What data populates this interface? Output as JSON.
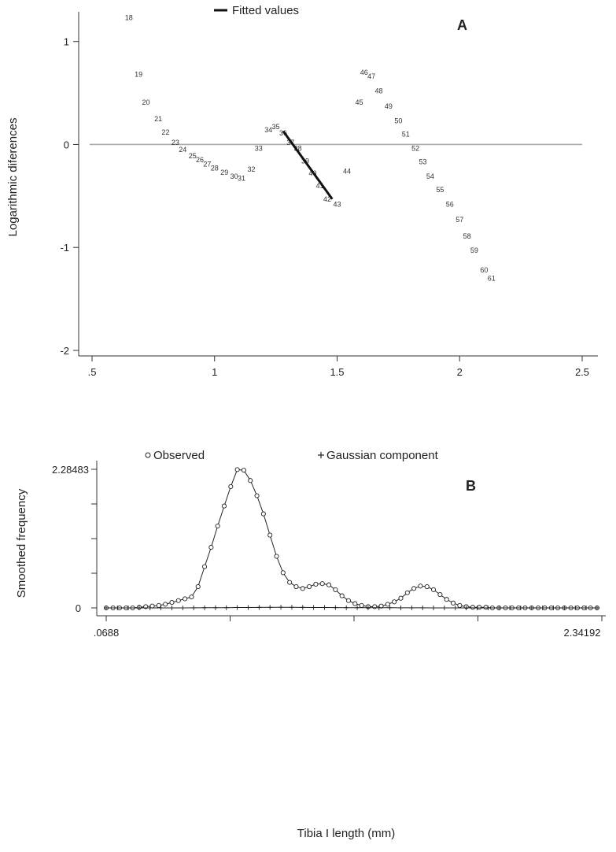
{
  "chart_data": [
    {
      "type": "scatter",
      "panel_label": "A",
      "ylabel": "Logarithmic diferences",
      "xlabel": "",
      "xlim": [
        0.5,
        2.5
      ],
      "ylim": [
        -2,
        1.25
      ],
      "x_ticks": [
        0.5,
        1,
        1.5,
        2,
        2.5
      ],
      "x_tick_labels": [
        ".5",
        "1",
        "1.5",
        "2",
        "2.5"
      ],
      "y_ticks": [
        -2,
        -1,
        0,
        1
      ],
      "y_tick_labels": [
        "-2",
        "-1",
        "0",
        "1"
      ],
      "reference_line_y": 0,
      "legend": {
        "label": "Fitted values",
        "placement": "top-center"
      },
      "fitted_line": [
        {
          "x": 1.28,
          "y": 0.13
        },
        {
          "x": 1.48,
          "y": -0.53
        }
      ],
      "points": [
        {
          "label": "18",
          "x": 0.65,
          "y": 1.23
        },
        {
          "label": "19",
          "x": 0.69,
          "y": 0.68
        },
        {
          "label": "20",
          "x": 0.72,
          "y": 0.41
        },
        {
          "label": "21",
          "x": 0.77,
          "y": 0.25
        },
        {
          "label": "22",
          "x": 0.8,
          "y": 0.12
        },
        {
          "label": "23",
          "x": 0.84,
          "y": 0.02
        },
        {
          "label": "24",
          "x": 0.87,
          "y": -0.05
        },
        {
          "label": "25",
          "x": 0.91,
          "y": -0.11
        },
        {
          "label": "26",
          "x": 0.94,
          "y": -0.15
        },
        {
          "label": "27",
          "x": 0.97,
          "y": -0.19
        },
        {
          "label": "28",
          "x": 1.0,
          "y": -0.23
        },
        {
          "label": "29",
          "x": 1.04,
          "y": -0.27
        },
        {
          "label": "30",
          "x": 1.08,
          "y": -0.31
        },
        {
          "label": "31",
          "x": 1.11,
          "y": -0.33
        },
        {
          "label": "32",
          "x": 1.15,
          "y": -0.24
        },
        {
          "label": "33",
          "x": 1.18,
          "y": -0.04
        },
        {
          "label": "34",
          "x": 1.22,
          "y": 0.14
        },
        {
          "label": "35",
          "x": 1.25,
          "y": 0.17
        },
        {
          "label": "36",
          "x": 1.28,
          "y": 0.11
        },
        {
          "label": "37",
          "x": 1.31,
          "y": 0.02
        },
        {
          "label": "38",
          "x": 1.34,
          "y": -0.04
        },
        {
          "label": "39",
          "x": 1.37,
          "y": -0.16
        },
        {
          "label": "40",
          "x": 1.4,
          "y": -0.28
        },
        {
          "label": "41",
          "x": 1.43,
          "y": -0.4
        },
        {
          "label": "42",
          "x": 1.46,
          "y": -0.53
        },
        {
          "label": "43",
          "x": 1.5,
          "y": -0.58
        },
        {
          "label": "44",
          "x": 1.54,
          "y": -0.26
        },
        {
          "label": "45",
          "x": 1.59,
          "y": 0.41
        },
        {
          "label": "46",
          "x": 1.61,
          "y": 0.7
        },
        {
          "label": "47",
          "x": 1.64,
          "y": 0.66
        },
        {
          "label": "48",
          "x": 1.67,
          "y": 0.52
        },
        {
          "label": "49",
          "x": 1.71,
          "y": 0.37
        },
        {
          "label": "50",
          "x": 1.75,
          "y": 0.23
        },
        {
          "label": "51",
          "x": 1.78,
          "y": 0.1
        },
        {
          "label": "52",
          "x": 1.82,
          "y": -0.04
        },
        {
          "label": "53",
          "x": 1.85,
          "y": -0.17
        },
        {
          "label": "54",
          "x": 1.88,
          "y": -0.31
        },
        {
          "label": "55",
          "x": 1.92,
          "y": -0.44
        },
        {
          "label": "56",
          "x": 1.96,
          "y": -0.58
        },
        {
          "label": "57",
          "x": 2.0,
          "y": -0.73
        },
        {
          "label": "58",
          "x": 2.03,
          "y": -0.89
        },
        {
          "label": "59",
          "x": 2.06,
          "y": -1.03
        },
        {
          "label": "60",
          "x": 2.1,
          "y": -1.22
        },
        {
          "label": "61",
          "x": 2.13,
          "y": -1.3
        }
      ]
    },
    {
      "type": "line",
      "panel_label": "B",
      "ylabel": "Smoothed frequency",
      "xlabel": "Tibia I length (mm)",
      "xlim": [
        0.0688,
        2.34192
      ],
      "ylim": [
        0,
        2.28483
      ],
      "x_tick_labels": [
        ".0688",
        "2.34192"
      ],
      "y_tick_labels": [
        "0",
        "2.28483"
      ],
      "legend_placement": "top",
      "series": [
        {
          "name": "Observed",
          "marker": "circle",
          "x": [
            0.0688,
            0.1,
            0.13,
            0.16,
            0.19,
            0.22,
            0.25,
            0.28,
            0.31,
            0.34,
            0.37,
            0.4,
            0.43,
            0.46,
            0.49,
            0.52,
            0.55,
            0.58,
            0.61,
            0.64,
            0.67,
            0.7,
            0.73,
            0.76,
            0.79,
            0.82,
            0.85,
            0.88,
            0.91,
            0.94,
            0.97,
            1.0,
            1.03,
            1.06,
            1.09,
            1.12,
            1.15,
            1.18,
            1.21,
            1.24,
            1.27,
            1.3,
            1.33,
            1.36,
            1.39,
            1.42,
            1.45,
            1.48,
            1.51,
            1.54,
            1.57,
            1.6,
            1.63,
            1.66,
            1.69,
            1.72,
            1.75,
            1.78,
            1.81,
            1.84,
            1.87,
            1.9,
            1.93,
            1.96,
            1.99,
            2.02,
            2.05,
            2.08,
            2.11,
            2.14,
            2.17,
            2.2,
            2.23,
            2.26,
            2.29,
            2.32
          ],
          "y": [
            0,
            0,
            0,
            0,
            0,
            0.01,
            0.02,
            0.03,
            0.04,
            0.06,
            0.09,
            0.12,
            0.15,
            0.18,
            0.35,
            0.68,
            1.0,
            1.35,
            1.68,
            2.0,
            2.28,
            2.27,
            2.1,
            1.85,
            1.55,
            1.2,
            0.85,
            0.58,
            0.42,
            0.35,
            0.32,
            0.35,
            0.39,
            0.4,
            0.38,
            0.3,
            0.2,
            0.12,
            0.07,
            0.04,
            0.02,
            0.02,
            0.03,
            0.06,
            0.1,
            0.16,
            0.25,
            0.32,
            0.36,
            0.35,
            0.3,
            0.22,
            0.14,
            0.08,
            0.04,
            0.02,
            0.01,
            0.01,
            0.01,
            0,
            0,
            0,
            0,
            0,
            0,
            0,
            0,
            0,
            0,
            0,
            0,
            0,
            0,
            0,
            0,
            0
          ]
        },
        {
          "name": "Gaussian component",
          "marker": "plus",
          "x": [
            0.0688,
            0.12,
            0.17,
            0.22,
            0.27,
            0.32,
            0.37,
            0.42,
            0.47,
            0.52,
            0.57,
            0.62,
            0.67,
            0.72,
            0.77,
            0.82,
            0.87,
            0.92,
            0.97,
            1.02,
            1.07,
            1.12,
            1.17,
            1.22,
            1.27,
            1.32,
            1.37,
            1.42,
            1.47,
            1.52,
            1.57,
            1.62,
            1.67,
            1.72,
            1.77,
            1.82,
            1.87,
            1.92,
            1.97,
            2.02,
            2.07,
            2.12,
            2.17,
            2.22,
            2.27,
            2.32
          ],
          "y": [
            0,
            0,
            0,
            0,
            0,
            0,
            0,
            0,
            0.001,
            0.002,
            0.003,
            0.004,
            0.006,
            0.007,
            0.008,
            0.009,
            0.01,
            0.009,
            0.008,
            0.007,
            0.006,
            0.005,
            0.004,
            0.003,
            0.003,
            0.002,
            0.002,
            0.001,
            0.001,
            0.001,
            0,
            0,
            0,
            0,
            0,
            0,
            0,
            0,
            0,
            0,
            0,
            0,
            0,
            0,
            0,
            0
          ]
        }
      ]
    }
  ]
}
